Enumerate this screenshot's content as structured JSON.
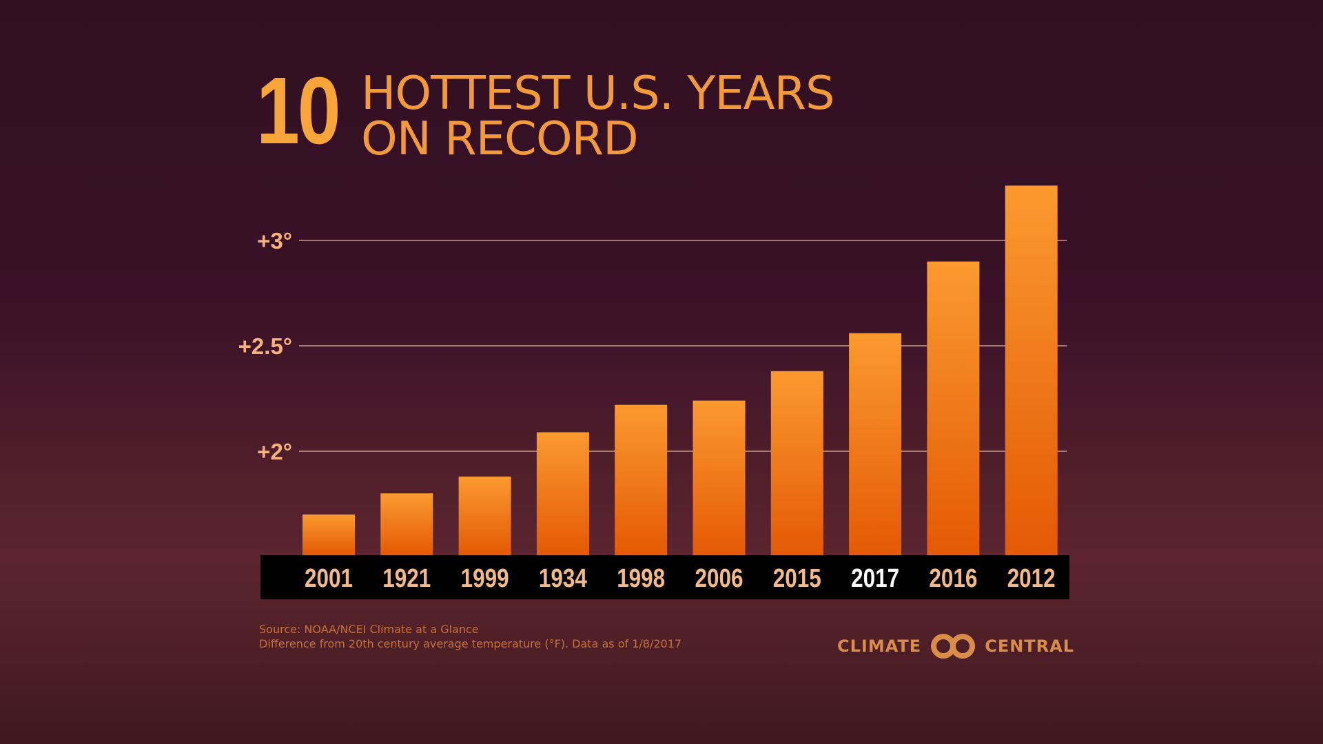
{
  "title": {
    "number": "10",
    "line1": "HOTTEST U.S. YEARS",
    "line2": "ON RECORD"
  },
  "source": {
    "line1": "Source: NOAA/NCEI Climate at a Glance",
    "line2": "Difference from 20th century average temperature (°F). Data as of 1/8/2017"
  },
  "logo": {
    "left": "CLIMATE",
    "right": "CENTRAL",
    "icon": "linked-rings-icon"
  },
  "colors": {
    "bar_top": "#fb9a2f",
    "bar_bottom": "#e45906",
    "gridline": "#e2b49a",
    "tick_label": "#f6b37c",
    "year_label": "#f2b98a",
    "year_label_highlight": "#ffffff",
    "axis_band": "#000000"
  },
  "chart_data": {
    "type": "bar",
    "categories": [
      "2001",
      "1921",
      "1999",
      "1934",
      "1998",
      "2006",
      "2015",
      "2017",
      "2016",
      "2012"
    ],
    "values": [
      1.7,
      1.8,
      1.88,
      2.09,
      2.22,
      2.24,
      2.38,
      2.56,
      2.9,
      3.26
    ],
    "highlight": "2017",
    "yticks": [
      {
        "value": 2,
        "label": "+2°"
      },
      {
        "value": 2.5,
        "label": "+2.5°"
      },
      {
        "value": 3,
        "label": "+3°"
      }
    ],
    "ylim": [
      1.5,
      3.3
    ],
    "grid": true,
    "xlabel": "",
    "ylabel": ""
  }
}
